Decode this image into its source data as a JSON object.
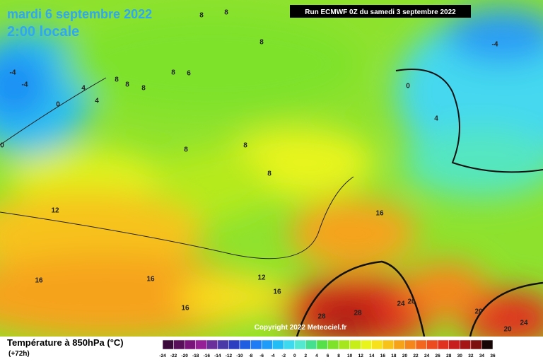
{
  "header": {
    "date": "mardi 6 septembre 2022",
    "time": "2:00 locale",
    "run": "Run ECMWF 0Z du samedi 3 septembre 2022",
    "copyright": "Copyright 2022 Meteociel.fr"
  },
  "legend": {
    "title": "Température à 850hPa (°C)",
    "lead": "(+72h)",
    "labels": [
      -24,
      -22,
      -20,
      -18,
      -16,
      -14,
      -12,
      -10,
      -8,
      -6,
      -4,
      -2,
      0,
      2,
      4,
      6,
      8,
      10,
      12,
      14,
      16,
      18,
      20,
      22,
      24,
      26,
      28,
      30,
      32,
      34,
      36
    ],
    "colors": [
      "#3a0a3a",
      "#5a0f5a",
      "#7a147a",
      "#961e96",
      "#6b2f9c",
      "#4a3aa8",
      "#2c3fc0",
      "#1f5ee0",
      "#1e7cf5",
      "#1f9cfa",
      "#22bdf5",
      "#3fd9ef",
      "#55e8d0",
      "#45e08f",
      "#55e04a",
      "#7ee22b",
      "#a5e61e",
      "#c8ee1a",
      "#e8f41c",
      "#f7e11c",
      "#f7c21a",
      "#f6a31a",
      "#f5861b",
      "#f2661d",
      "#ec4a1f",
      "#e0301f",
      "#c81d1d",
      "#a51515",
      "#7d0f0f",
      "#150505"
    ]
  },
  "map_labels": [
    8,
    8,
    8,
    -4,
    -4,
    -4,
    4,
    4,
    0,
    8,
    8,
    8,
    8,
    6,
    0,
    4,
    0,
    8,
    8,
    8,
    12,
    16,
    16,
    16,
    12,
    16,
    16,
    28,
    28,
    24,
    20,
    20,
    24,
    20
  ]
}
